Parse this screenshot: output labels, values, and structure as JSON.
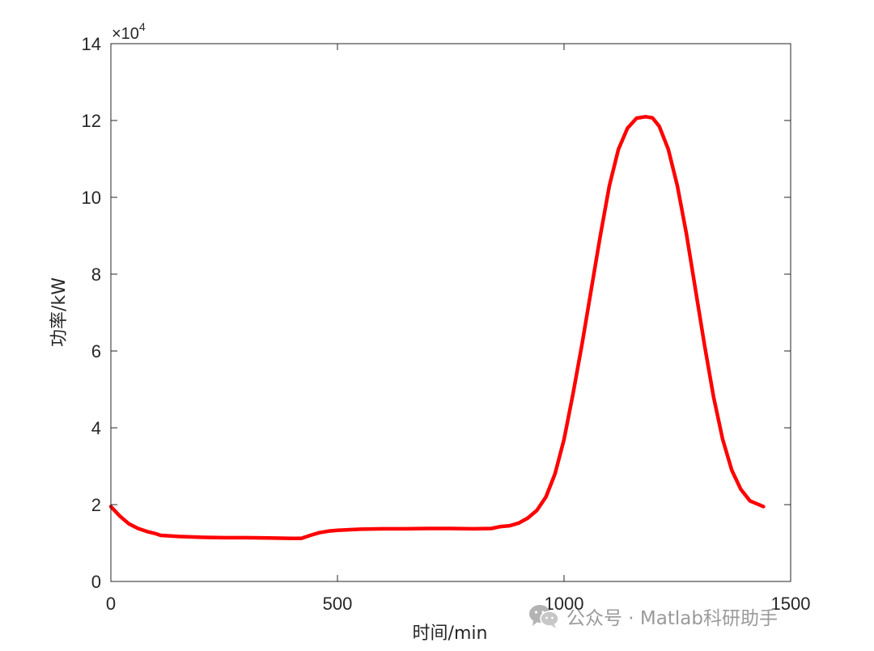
{
  "chart_data": {
    "type": "line",
    "title": "",
    "xlabel": "时间/min",
    "ylabel": "功率/kW",
    "xlim": [
      0,
      1500
    ],
    "ylim": [
      0,
      140000
    ],
    "x_ticks": [
      0,
      500,
      1000,
      1500
    ],
    "y_ticks": [
      0,
      20000,
      40000,
      60000,
      80000,
      100000,
      120000,
      140000
    ],
    "x_tick_labels": [
      "0",
      "500",
      "1000",
      "1500"
    ],
    "y_tick_labels": [
      "0",
      "2",
      "4",
      "6",
      "8",
      "10",
      "12",
      "14"
    ],
    "y_exponent": {
      "base": "×10",
      "power": "4"
    },
    "grid": false,
    "series": [
      {
        "color": "#ff0000",
        "x": [
          0,
          20,
          40,
          60,
          80,
          100,
          110,
          150,
          200,
          250,
          300,
          350,
          400,
          420,
          440,
          460,
          480,
          500,
          550,
          600,
          650,
          700,
          750,
          800,
          840,
          860,
          880,
          900,
          920,
          940,
          960,
          980,
          1000,
          1020,
          1040,
          1060,
          1080,
          1100,
          1120,
          1140,
          1160,
          1180,
          1195,
          1210,
          1230,
          1250,
          1270,
          1290,
          1310,
          1330,
          1350,
          1370,
          1390,
          1410,
          1440
        ],
        "y": [
          19500,
          17000,
          15000,
          13800,
          13000,
          12400,
          12000,
          11700,
          11500,
          11400,
          11400,
          11300,
          11200,
          11200,
          12000,
          12700,
          13100,
          13300,
          13600,
          13700,
          13700,
          13800,
          13800,
          13700,
          13800,
          14300,
          14500,
          15200,
          16500,
          18500,
          22000,
          28000,
          37000,
          49000,
          62000,
          76000,
          90000,
          103000,
          112500,
          118000,
          120600,
          121000,
          120700,
          118500,
          112500,
          103000,
          90500,
          76000,
          61500,
          48000,
          37000,
          29000,
          24000,
          21000,
          19500
        ]
      }
    ]
  },
  "watermark": {
    "icon": "wechat-icon",
    "text": "公众号 · Matlab科研助手"
  }
}
